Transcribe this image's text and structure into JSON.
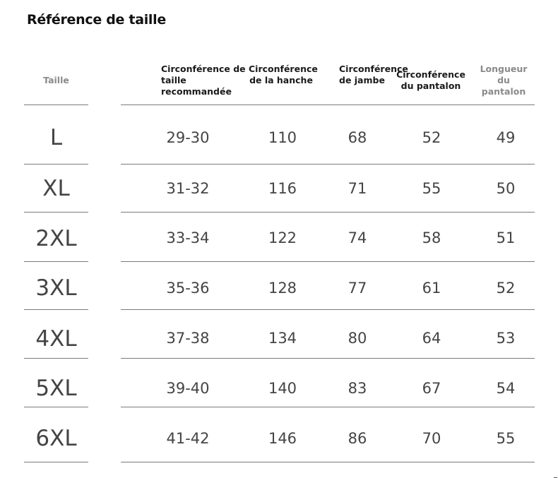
{
  "title": "Référence de taille",
  "headers": {
    "size": "Taille",
    "waist_recommended": "Circonférence de taille recommandée",
    "hip": "Circonférence de la hanche",
    "leg": "Circonférence de jambe",
    "pants": "Circonférence du pantalon",
    "length": "Longueur du pantalon"
  },
  "rows": [
    {
      "size": "L",
      "waist": "29-30",
      "hip": "110",
      "leg": "68",
      "pants": "52",
      "length": "49"
    },
    {
      "size": "XL",
      "waist": "31-32",
      "hip": "116",
      "leg": "71",
      "pants": "55",
      "length": "50"
    },
    {
      "size": "2XL",
      "waist": "33-34",
      "hip": "122",
      "leg": "74",
      "pants": "58",
      "length": "51"
    },
    {
      "size": "3XL",
      "waist": "35-36",
      "hip": "128",
      "leg": "77",
      "pants": "61",
      "length": "52"
    },
    {
      "size": "4XL",
      "waist": "37-38",
      "hip": "134",
      "leg": "80",
      "pants": "64",
      "length": "53"
    },
    {
      "size": "5XL",
      "waist": "39-40",
      "hip": "140",
      "leg": "83",
      "pants": "67",
      "length": "54"
    },
    {
      "size": "6XL",
      "waist": "41-42",
      "hip": "146",
      "leg": "86",
      "pants": "70",
      "length": "55"
    }
  ]
}
